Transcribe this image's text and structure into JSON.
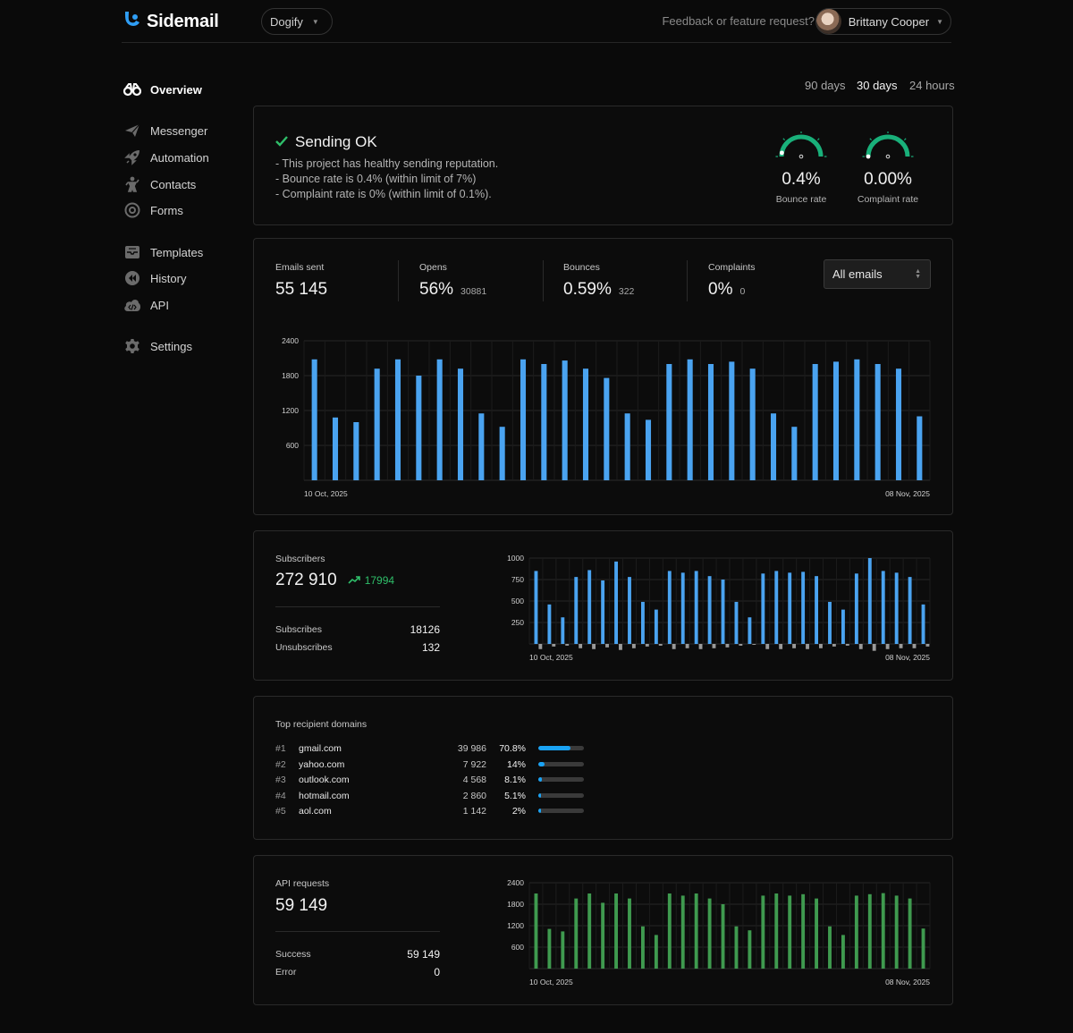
{
  "app": {
    "name": "Sidemail",
    "project": "Dogify"
  },
  "header": {
    "feedback": "Feedback or feature request?",
    "user_name": "Brittany Cooper"
  },
  "sidebar": {
    "items": [
      {
        "label": "Overview",
        "icon": "binoculars-icon",
        "active": true
      },
      {
        "label": "Messenger",
        "icon": "paper-plane-icon"
      },
      {
        "label": "Automation",
        "icon": "rocket-icon"
      },
      {
        "label": "Contacts",
        "icon": "person-icon"
      },
      {
        "label": "Forms",
        "icon": "at-icon"
      },
      {
        "label": "Templates",
        "icon": "inbox-icon"
      },
      {
        "label": "History",
        "icon": "rewind-icon"
      },
      {
        "label": "API",
        "icon": "cloud-code-icon"
      },
      {
        "label": "Settings",
        "icon": "gear-icon"
      }
    ]
  },
  "periods": {
    "p90": "90 days",
    "p30": "30 days",
    "p24": "24 hours",
    "active": "30 days"
  },
  "status": {
    "title": "Sending OK",
    "lines": [
      "- This project has healthy sending reputation.",
      "- Bounce rate is 0.4% (within limit of 7%)",
      "- Complaint rate is 0% (within limit of 0.1%)."
    ],
    "bounce": {
      "value": "0.4%",
      "label": "Bounce rate",
      "level": 0.06
    },
    "complaint": {
      "value": "0.00%",
      "label": "Complaint rate",
      "level": 0.0
    }
  },
  "emails": {
    "sent_label": "Emails sent",
    "sent_value": "55 145",
    "opens_label": "Opens",
    "opens_value": "56%",
    "opens_sub": "30881",
    "bounces_label": "Bounces",
    "bounces_value": "0.59%",
    "bounces_sub": "322",
    "complaints_label": "Complaints",
    "complaints_value": "0%",
    "complaints_sub": "0",
    "filter": "All emails"
  },
  "subscribers": {
    "label": "Subscribers",
    "value": "272 910",
    "growth": "17994",
    "subscribes_label": "Subscribes",
    "subscribes_value": "18126",
    "unsubscribes_label": "Unsubscribes",
    "unsubscribes_value": "132"
  },
  "domains": {
    "title": "Top recipient domains",
    "rows": [
      {
        "rank": "#1",
        "domain": "gmail.com",
        "count": "39 986",
        "pct": "70.8%",
        "fraction": 0.708
      },
      {
        "rank": "#2",
        "domain": "yahoo.com",
        "count": "7 922",
        "pct": "14%",
        "fraction": 0.14
      },
      {
        "rank": "#3",
        "domain": "outlook.com",
        "count": "4 568",
        "pct": "8.1%",
        "fraction": 0.081
      },
      {
        "rank": "#4",
        "domain": "hotmail.com",
        "count": "2 860",
        "pct": "5.1%",
        "fraction": 0.051
      },
      {
        "rank": "#5",
        "domain": "aol.com",
        "count": "1 142",
        "pct": "2%",
        "fraction": 0.02
      }
    ]
  },
  "api": {
    "label": "API requests",
    "value": "59 149",
    "success_label": "Success",
    "success_value": "59 149",
    "error_label": "Error",
    "error_value": "0"
  },
  "colors": {
    "blue": "#4aa3f0",
    "green": "#3f9a4f",
    "gauge": "#19b07a",
    "accent": "#1aa3f5",
    "ok": "#2fbf6a"
  },
  "chart_data": [
    {
      "type": "bar",
      "id": "emails",
      "color": "#4aa3f0",
      "ylim": [
        0,
        2400
      ],
      "yticks": [
        "2400",
        "1800",
        "1200",
        "600"
      ],
      "x_start_label": "10 Oct, 2025",
      "x_end_label": "08 Nov, 2025",
      "values": [
        2080,
        1080,
        1000,
        1920,
        2080,
        1800,
        2080,
        1920,
        1150,
        920,
        2080,
        2000,
        2060,
        1920,
        1760,
        1150,
        1040,
        2000,
        2080,
        2000,
        2040,
        1920,
        1150,
        920,
        2000,
        2040,
        2080,
        2000,
        1920,
        1100
      ]
    },
    {
      "type": "bar",
      "id": "subscribers",
      "color": "#4aa3f0",
      "neg_color": "#9a9a9a",
      "ylim": [
        0,
        1000
      ],
      "yticks": [
        "1000",
        "750",
        "500",
        "250"
      ],
      "x_start_label": "10 Oct, 2025",
      "x_end_label": "08 Nov, 2025",
      "values": [
        850,
        460,
        310,
        780,
        860,
        740,
        960,
        780,
        490,
        400,
        850,
        830,
        850,
        790,
        750,
        490,
        310,
        820,
        850,
        830,
        840,
        790,
        490,
        400,
        820,
        1000,
        850,
        830,
        780,
        460
      ],
      "negatives": [
        60,
        30,
        20,
        50,
        60,
        40,
        70,
        50,
        30,
        20,
        60,
        50,
        60,
        50,
        40,
        20,
        10,
        60,
        60,
        50,
        60,
        50,
        30,
        20,
        60,
        80,
        60,
        50,
        50,
        30
      ]
    },
    {
      "type": "bar",
      "id": "api",
      "color": "#3f9a4f",
      "ylim": [
        0,
        2400
      ],
      "yticks": [
        "2400",
        "1800",
        "1200",
        "600"
      ],
      "x_start_label": "10 Oct, 2025",
      "x_end_label": "08 Nov, 2025",
      "values": [
        2100,
        1110,
        1040,
        1960,
        2100,
        1840,
        2100,
        1960,
        1180,
        940,
        2100,
        2040,
        2100,
        1960,
        1800,
        1180,
        1070,
        2040,
        2100,
        2040,
        2080,
        1960,
        1180,
        940,
        2040,
        2080,
        2110,
        2040,
        1960,
        1120
      ]
    }
  ]
}
